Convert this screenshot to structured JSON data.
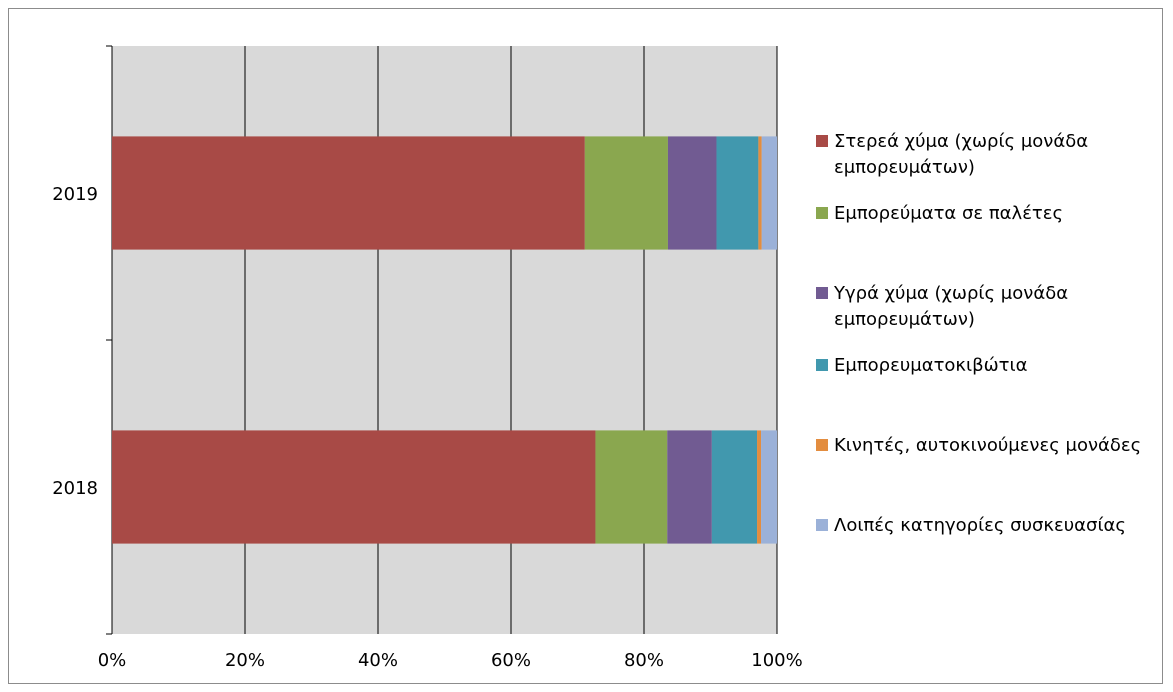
{
  "chart_data": {
    "type": "bar",
    "orientation": "horizontal",
    "stacked": true,
    "percent": true,
    "categories": [
      "2018",
      "2019"
    ],
    "series": [
      {
        "name": "Στερεά χύμα (χωρίς μονάδα εμπορευμάτων)",
        "color": "#a84a46",
        "values": [
          72.7,
          71.1
        ]
      },
      {
        "name": "Εμπορεύματα σε παλέτες",
        "color": "#8aa74f",
        "values": [
          10.8,
          12.5
        ]
      },
      {
        "name": "Υγρά χύμα (χωρίς μονάδα εμπορευμάτων)",
        "color": "#715b92",
        "values": [
          6.7,
          7.3
        ]
      },
      {
        "name": "Εμπορευματοκιβώτια",
        "color": "#4198ae",
        "values": [
          6.8,
          6.3
        ]
      },
      {
        "name": "Κινητές, αυτοκινούμενες μονάδες",
        "color": "#e38d3f",
        "values": [
          0.6,
          0.5
        ]
      },
      {
        "name": "Λοιπές κατηγορίες συσκευασίας",
        "color": "#9bb1d8",
        "values": [
          2.4,
          2.3
        ]
      }
    ],
    "x_ticks": [
      "0%",
      "20%",
      "40%",
      "60%",
      "80%",
      "100%"
    ],
    "xlim": [
      0,
      100
    ],
    "grid": true,
    "legend_position": "right",
    "plot_background": "#d9d9d9"
  }
}
